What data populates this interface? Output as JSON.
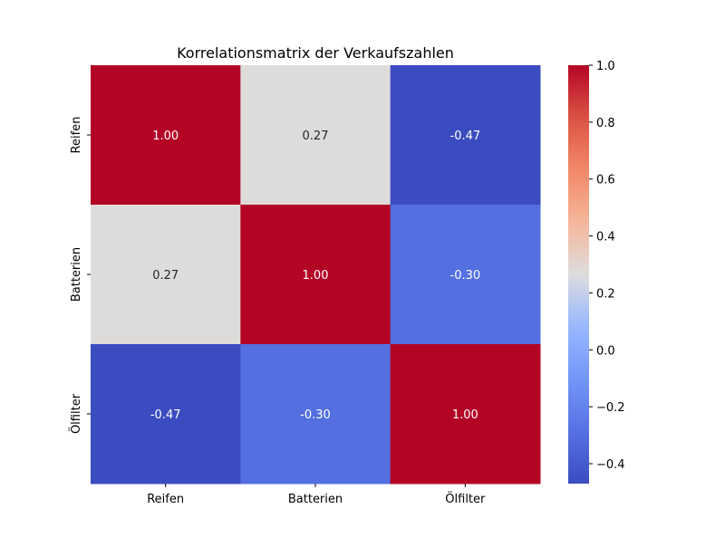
{
  "chart_data": {
    "type": "heatmap",
    "title": "Korrelationsmatrix der Verkaufszahlen",
    "xlabel": "",
    "ylabel": "",
    "x_categories": [
      "Reifen",
      "Batterien",
      "Ölfilter"
    ],
    "y_categories": [
      "Reifen",
      "Batterien",
      "Ölfilter"
    ],
    "values": [
      [
        1.0,
        0.27,
        -0.47
      ],
      [
        0.27,
        1.0,
        -0.3
      ],
      [
        -0.47,
        -0.3,
        1.0
      ]
    ],
    "value_labels": [
      [
        "1.00",
        "0.27",
        "-0.47"
      ],
      [
        "0.27",
        "1.00",
        "-0.30"
      ],
      [
        "-0.47",
        "-0.30",
        "1.00"
      ]
    ],
    "colormap": "coolwarm",
    "color_range": [
      -0.47,
      1.0
    ],
    "colorbar_ticks": [
      1.0,
      0.8,
      0.6,
      0.4,
      0.2,
      0.0,
      -0.2,
      -0.4
    ],
    "colorbar_tick_labels": [
      "1.0",
      "0.8",
      "0.6",
      "0.4",
      "0.2",
      "0.0",
      "−0.2",
      "−0.4"
    ],
    "grid": false,
    "legend": "colorbar-right"
  }
}
